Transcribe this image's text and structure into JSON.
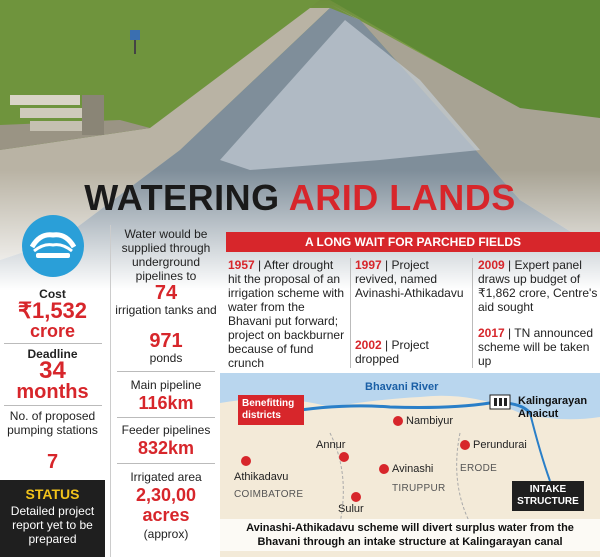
{
  "headline": {
    "part1": "WATERING",
    "part2": "ARID LANDS"
  },
  "left": {
    "cost_label": "Cost",
    "cost_value": "₹1,532",
    "cost_unit": "crore",
    "deadline_label": "Deadline",
    "deadline_value": "34",
    "deadline_unit": "months",
    "pumping_label": "No. of proposed pumping stations",
    "pumping_value": "7",
    "status_title": "STATUS",
    "status_text": "Detailed project report yet to be prepared"
  },
  "middle": {
    "intro": "Water would be supplied through underground pipelines to",
    "tanks_value": "74",
    "tanks_text": "irrigation tanks and",
    "ponds_value": "971",
    "ponds_text": "ponds",
    "main_pipeline_label": "Main pipeline",
    "main_pipeline_value": "116km",
    "feeder_label": "Feeder pipelines",
    "feeder_value": "832km",
    "irrigated_label": "Irrigated area",
    "irrigated_value": "2,30,00",
    "irrigated_unit": "acres",
    "irrigated_note": "(approx)"
  },
  "timeline": {
    "title": "A LONG WAIT FOR PARCHED FIELDS",
    "entries": [
      {
        "year": "1957",
        "text": "After drought hit the proposal of an irrigation scheme with water from the Bhavani put forward; project on backburner because of fund crunch"
      },
      {
        "year": "1997",
        "text": "Project revived, named Avinashi-Athikadavu"
      },
      {
        "year": "2002",
        "text": "Project dropped"
      },
      {
        "year": "2009",
        "text": "Expert panel draws up budget of ₹1,862 crore, Centre's aid sought"
      },
      {
        "year": "2017",
        "text": "TN announced scheme will be taken up"
      }
    ]
  },
  "map": {
    "benefit_label": "Benefitting districts",
    "river": "Bhavani River",
    "anaicut": "Kalingarayan Anaicut",
    "intake": "INTAKE STRUCTURE",
    "places": [
      "Nambiyur",
      "Perundurai",
      "Annur",
      "Avinashi",
      "Athikadavu",
      "Sulur"
    ],
    "districts": [
      "COIMBATORE",
      "TIRUPPUR",
      "ERODE"
    ],
    "caption": "Avinashi-Athikadavu scheme will divert surplus water from the Bhavani through an intake structure at Kalingarayan canal",
    "colors": {
      "land": "#f3ead8",
      "water": "#b9d6ee",
      "dot": "#d7262b",
      "river": "#2a7fc8"
    }
  },
  "icons": {
    "pipeline": "pipe-icon",
    "dam": "dam-icon"
  }
}
